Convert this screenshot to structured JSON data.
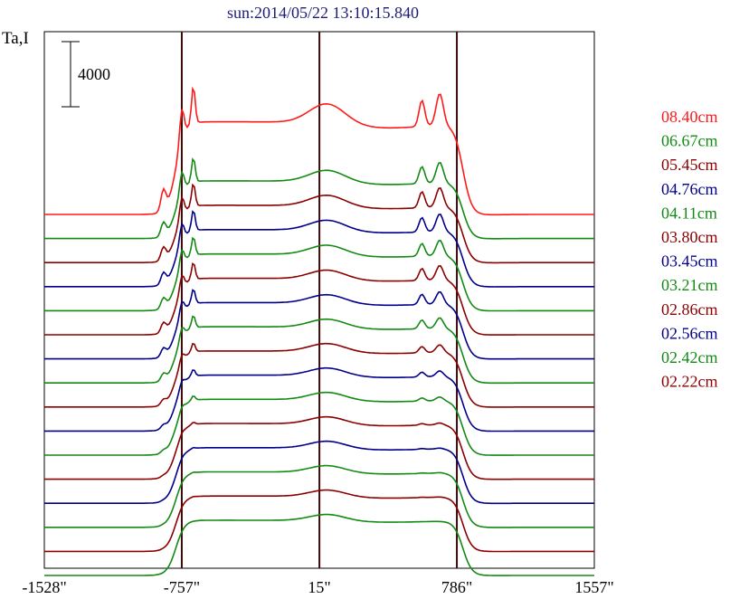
{
  "chart_data": {
    "type": "line",
    "title": "sun:2014/05/22 13:10:15.840",
    "ylabel": "Ta,I",
    "scale_bar_label": "4000",
    "x_ticks": [
      {
        "label": "-1528\"",
        "value": -1528
      },
      {
        "label": "-757\"",
        "value": -757
      },
      {
        "label": "15\"",
        "value": 15
      },
      {
        "label": "786\"",
        "value": 786
      },
      {
        "label": "1557\"",
        "value": 1557
      }
    ],
    "xlim": [
      -1528,
      1557
    ],
    "limb_markers": [
      -757,
      15,
      786
    ],
    "stack_order_top_to_bottom": [
      "08.40cm",
      "06.67cm",
      "05.45cm",
      "04.76cm",
      "04.11cm",
      "03.80cm",
      "03.45cm",
      "03.21cm",
      "02.86cm",
      "02.56cm",
      "02.42cm",
      "02.22cm",
      "",
      "",
      "",
      ""
    ],
    "series": [
      {
        "name": "08.40cm",
        "color": "#ff1a1a",
        "baseline": 0,
        "amp": 1.0,
        "peaks": 1.0
      },
      {
        "name": "06.67cm",
        "color": "#138a13",
        "baseline": 0,
        "amp": 0.95,
        "peaks": 1.05
      },
      {
        "name": "05.45cm",
        "color": "#8b0000",
        "baseline": 0,
        "amp": 0.9,
        "peaks": 1.0
      },
      {
        "name": "04.76cm",
        "color": "#00008b",
        "baseline": 0,
        "amp": 0.85,
        "peaks": 0.9
      },
      {
        "name": "04.11cm",
        "color": "#138a13",
        "baseline": 0,
        "amp": 0.8,
        "peaks": 0.8
      },
      {
        "name": "03.80cm",
        "color": "#8b0000",
        "baseline": 0,
        "amp": 0.75,
        "peaks": 0.75
      },
      {
        "name": "03.45cm",
        "color": "#00008b",
        "baseline": 0,
        "amp": 0.72,
        "peaks": 0.65
      },
      {
        "name": "03.21cm",
        "color": "#138a13",
        "baseline": 0,
        "amp": 0.7,
        "peaks": 0.55
      },
      {
        "name": "02.86cm",
        "color": "#8b0000",
        "baseline": 0,
        "amp": 0.68,
        "peaks": 0.4
      },
      {
        "name": "02.56cm",
        "color": "#00008b",
        "baseline": 0,
        "amp": 0.66,
        "peaks": 0.3
      },
      {
        "name": "02.42cm",
        "color": "#138a13",
        "baseline": 0,
        "amp": 0.64,
        "peaks": 0.2
      },
      {
        "name": "02.22cm",
        "color": "#8b0000",
        "baseline": 0,
        "amp": 0.62,
        "peaks": 0.1
      },
      {
        "name": "",
        "color": "#00008b",
        "baseline": 0,
        "amp": 0.6,
        "peaks": 0.05
      },
      {
        "name": "",
        "color": "#138a13",
        "baseline": 0,
        "amp": 0.58,
        "peaks": 0.03
      },
      {
        "name": "",
        "color": "#8b0000",
        "baseline": 0,
        "amp": 0.56,
        "peaks": 0.02
      },
      {
        "name": "",
        "color": "#138a13",
        "baseline": 0,
        "amp": 0.54,
        "peaks": 0.0
      }
    ],
    "grid": false,
    "legend_placement": "right"
  }
}
